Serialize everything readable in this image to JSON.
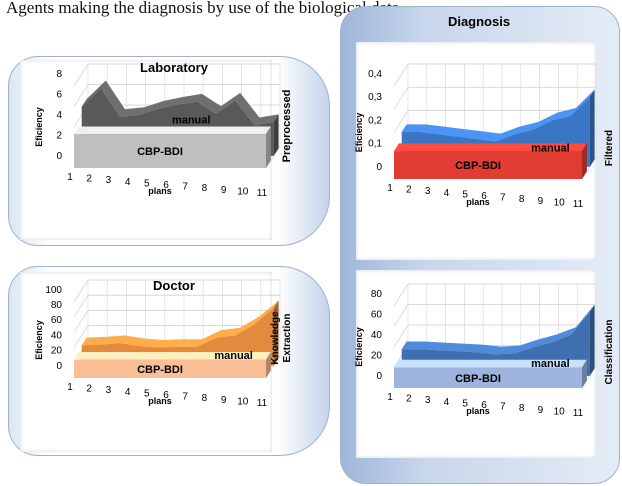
{
  "header_text": "Agents making the diagnosis by use of the biological data",
  "diagnosis_label": "Diagnosis",
  "charts": [
    {
      "id": "laboratory",
      "type": "area",
      "title": "Laboratory",
      "ylabel": "Eficiency",
      "xlabel": "plans",
      "side_label_lines": [
        "Preprocessed"
      ],
      "y_ticks": [
        "0",
        "2",
        "4",
        "6",
        "8"
      ],
      "ylim": [
        0,
        8
      ],
      "x": [
        "1",
        "2",
        "3",
        "4",
        "5",
        "6",
        "7",
        "8",
        "9",
        "10",
        "11"
      ],
      "series": [
        {
          "name": "manual",
          "values": [
            4.8,
            6.6,
            3.8,
            4.0,
            4.6,
            5.0,
            5.3,
            4.1,
            5.4,
            3.0,
            3.3
          ],
          "color": "#595959"
        },
        {
          "name": "CBP-BDI",
          "values": [
            3.3,
            3.3,
            3.3,
            3.3,
            3.3,
            3.3,
            3.3,
            3.3,
            3.3,
            3.3,
            3.3
          ],
          "color": "#bfbfbf"
        }
      ]
    },
    {
      "id": "doctor",
      "type": "area",
      "title": "Doctor",
      "ylabel": "Eficiency",
      "xlabel": "plans",
      "side_label_lines": [
        "Knowledge",
        "Extraction"
      ],
      "y_ticks": [
        "0",
        "20",
        "40",
        "60",
        "80",
        "100"
      ],
      "ylim": [
        0,
        100
      ],
      "x": [
        "1",
        "2",
        "3",
        "4",
        "5",
        "6",
        "7",
        "8",
        "9",
        "10",
        "11"
      ],
      "series": [
        {
          "name": "manual",
          "values": [
            27,
            28,
            30,
            26,
            24,
            25,
            25,
            37,
            40,
            55,
            76
          ],
          "color": "#e48a3c"
        },
        {
          "name": "CBP-BDI",
          "values": [
            24,
            24,
            24,
            24,
            24,
            24,
            24,
            24,
            24,
            24,
            24
          ],
          "color": "#fbbf98"
        }
      ]
    },
    {
      "id": "filtered",
      "type": "area",
      "title": "",
      "ylabel": "Eficiency",
      "xlabel": "plans",
      "side_label_lines": [
        "Filtered"
      ],
      "y_ticks": [
        "0",
        "0,1",
        "0,2",
        "0,3",
        "0,4"
      ],
      "ylim": [
        0,
        0.4
      ],
      "x": [
        "1",
        "2",
        "3",
        "4",
        "5",
        "6",
        "7",
        "8",
        "9",
        "10",
        "11"
      ],
      "series": [
        {
          "name": "manual",
          "values": [
            0.15,
            0.15,
            0.14,
            0.13,
            0.12,
            0.11,
            0.14,
            0.16,
            0.2,
            0.22,
            0.3
          ],
          "color": "#3a76c4"
        },
        {
          "name": "CBP-BDI",
          "values": [
            0.12,
            0.12,
            0.12,
            0.12,
            0.12,
            0.12,
            0.12,
            0.12,
            0.12,
            0.12,
            0.12
          ],
          "color": "#e03c32"
        }
      ]
    },
    {
      "id": "classification",
      "type": "area",
      "title": "",
      "ylabel": "Eficiency",
      "xlabel": "plans",
      "side_label_lines": [
        "Classification"
      ],
      "y_ticks": [
        "0",
        "20",
        "40",
        "60",
        "80"
      ],
      "ylim": [
        0,
        80
      ],
      "x": [
        "1",
        "2",
        "3",
        "4",
        "5",
        "6",
        "7",
        "8",
        "9",
        "10",
        "11"
      ],
      "series": [
        {
          "name": "manual",
          "values": [
            26,
            26,
            25,
            24,
            23,
            21,
            22,
            28,
            33,
            40,
            62
          ],
          "color": "#3f6fae"
        },
        {
          "name": "CBP-BDI",
          "values": [
            20,
            20,
            20,
            20,
            20,
            20,
            20,
            20,
            20,
            20,
            20
          ],
          "color": "#9fb4dd"
        }
      ]
    }
  ]
}
